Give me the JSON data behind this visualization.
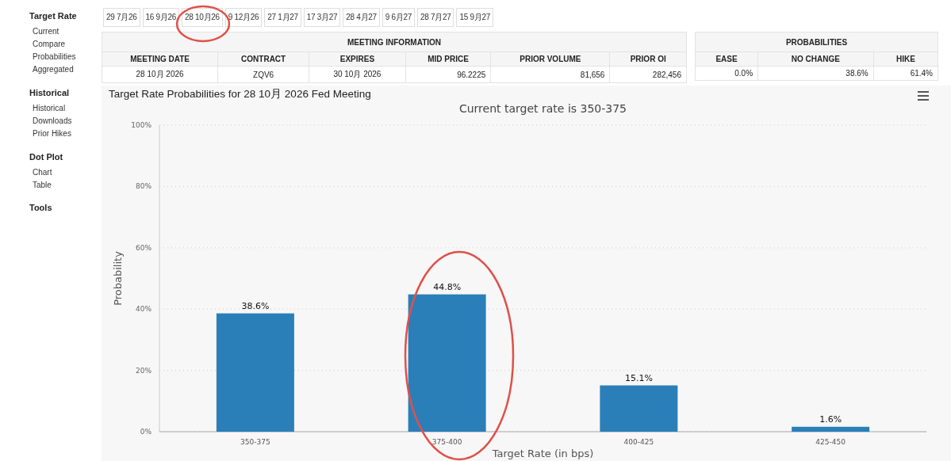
{
  "chart_data": [
    {
      "type": "other",
      "title": "Target Rate",
      "annotations": [
        "Current",
        "Compare",
        "Probabilities",
        "Aggregated"
      ]
    },
    {
      "type": "other",
      "title": "Historical",
      "annotations": [
        "Historical",
        "Downloads",
        "Prior Hikes"
      ]
    },
    {
      "type": "other",
      "title": "Dot Plot",
      "annotations": [
        "Chart",
        "Table"
      ]
    },
    {
      "type": "other",
      "title": "Tools"
    },
    {
      "type": "other",
      "annotations": [
        "29 7月26",
        "16 9月26",
        "28 10月26",
        "9 12月26",
        "27 1月27",
        "17 3月27",
        "28 4月27",
        "9 6月27",
        "28 7月27",
        "15 9月27"
      ]
    },
    {
      "type": "other",
      "title": "MEETING INFORMATION",
      "categories": [
        "MEETING DATE",
        "CONTRACT",
        "EXPIRES",
        "MID PRICE",
        "PRIOR VOLUME",
        "PRIOR OI"
      ],
      "annotations": [
        "28 10月 2026",
        "ZQV6",
        "30 10月 2026",
        "96.2225",
        "81,656",
        "282,456"
      ]
    },
    {
      "type": "other",
      "title": "PROBABILITIES",
      "categories": [
        "EASE",
        "NO CHANGE",
        "HIKE"
      ],
      "annotations": [
        "0.0%",
        "38.6%",
        "61.4%"
      ]
    },
    {
      "type": "bar",
      "title": "Target Rate Probabilities for 28 10月 2026 Fed Meeting",
      "subtitle": "Current target rate is 350-375",
      "xlabel": "Target Rate (in bps)",
      "ylabel": "Probability",
      "categories": [
        "350-375",
        "375-400",
        "400-425",
        "425-450"
      ],
      "values": [
        38.6,
        44.8,
        15.1,
        1.6
      ],
      "color": "#2a7fb8",
      "value_labels": [
        "38.6%",
        "44.8%",
        "15.1%",
        "1.6%"
      ],
      "ylim": [
        0,
        100
      ],
      "yticks": [
        {
          "value": 0,
          "label": "0%"
        },
        {
          "value": 20,
          "label": "20%"
        },
        {
          "value": 40,
          "label": "40%"
        },
        {
          "value": 60,
          "label": "60%"
        },
        {
          "value": 80,
          "label": "80%"
        },
        {
          "value": 100,
          "label": "100%"
        }
      ],
      "grid": "y"
    }
  ]
}
